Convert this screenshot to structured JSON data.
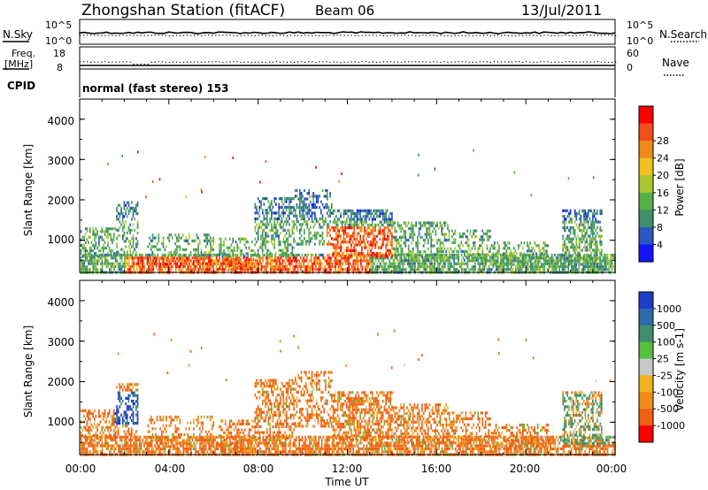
{
  "header": {
    "station": "Zhongshan Station (fitACF)",
    "beam": "Beam 06",
    "date": "13/Jul/2011"
  },
  "top_panels": {
    "nsky_label": "N.Sky",
    "nsearch_label": "N.Search",
    "nsky_ticks": [
      "10^5",
      "10^0"
    ],
    "nsearch_ticks": [
      "10^5",
      "10^0"
    ],
    "freq_label": "Freq.",
    "freq_unit": "[MHz]",
    "freq_ticks": [
      "18",
      "8"
    ],
    "nave_label": "Nave",
    "nave_ticks": [
      "60",
      "0"
    ],
    "cpid_label": "CPID",
    "cpid_text": "normal (fast stereo) 153"
  },
  "chart_data": [
    {
      "type": "heatmap",
      "name": "power",
      "ylabel": "Slant Range [km]",
      "xlabel": "",
      "yticks": [
        "1000",
        "2000",
        "3000",
        "4000"
      ],
      "ylim": [
        200,
        4500
      ],
      "colorbar": {
        "label": "Power [dB]",
        "ticks": [
          "4",
          "8",
          "12",
          "16",
          "20",
          "24",
          "28"
        ],
        "colors": [
          "#1414ff",
          "#2b58c0",
          "#3f8f6b",
          "#56b04a",
          "#a8c830",
          "#f0c020",
          "#f08a1a",
          "#f05018",
          "#ff0000"
        ]
      }
    },
    {
      "type": "heatmap",
      "name": "velocity",
      "ylabel": "Slant Range [km]",
      "xlabel": "Time UT",
      "yticks": [
        "1000",
        "2000",
        "3000",
        "4000"
      ],
      "ylim": [
        200,
        4500
      ],
      "xticks": [
        "00:00",
        "04:00",
        "08:00",
        "12:00",
        "16:00",
        "20:00",
        "00:00"
      ],
      "colorbar": {
        "label": "Velocity [m s-1]",
        "ticks": [
          "1000",
          "500",
          "100",
          "25",
          "-25",
          "-100",
          "-500",
          "-1000"
        ],
        "colors": [
          "#1e3cc8",
          "#2f6aa8",
          "#3f8f6b",
          "#58c040",
          "#c8c8c8",
          "#f0b020",
          "#f08a1a",
          "#f06010",
          "#ff0000"
        ]
      }
    }
  ]
}
